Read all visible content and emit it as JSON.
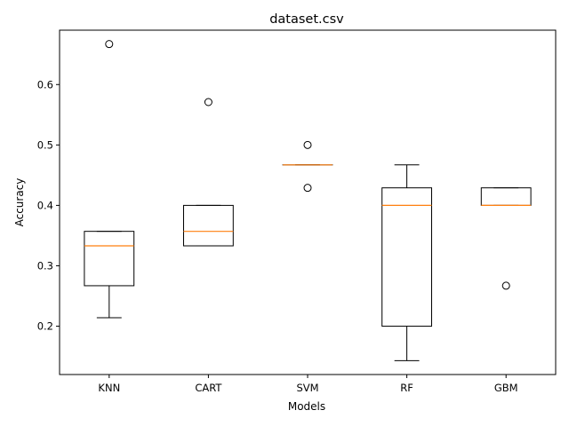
{
  "chart_data": {
    "type": "boxplot",
    "title": "dataset.csv",
    "xlabel": "Models",
    "ylabel": "Accuracy",
    "ylim": [
      0.12,
      0.69
    ],
    "yticks": [
      0.2,
      0.3,
      0.4,
      0.5,
      0.6
    ],
    "ytick_labels": [
      "0.2",
      "0.3",
      "0.4",
      "0.5",
      "0.6"
    ],
    "grid": false,
    "median_color": "#ff7f0e",
    "box_color": "#000000",
    "boxes": [
      {
        "label": "KNN",
        "whisker_low": 0.214,
        "q1": 0.267,
        "median": 0.333,
        "q3": 0.357,
        "whisker_high": 0.357,
        "outliers": [
          0.667
        ]
      },
      {
        "label": "CART",
        "whisker_low": 0.333,
        "q1": 0.333,
        "median": 0.357,
        "q3": 0.4,
        "whisker_high": 0.4,
        "outliers": [
          0.571
        ]
      },
      {
        "label": "SVM",
        "whisker_low": 0.467,
        "q1": 0.467,
        "median": 0.467,
        "q3": 0.467,
        "whisker_high": 0.467,
        "outliers": [
          0.5,
          0.429
        ]
      },
      {
        "label": "RF",
        "whisker_low": 0.143,
        "q1": 0.2,
        "median": 0.4,
        "q3": 0.429,
        "whisker_high": 0.467,
        "outliers": []
      },
      {
        "label": "GBM",
        "whisker_low": 0.4,
        "q1": 0.4,
        "median": 0.4,
        "q3": 0.429,
        "whisker_high": 0.429,
        "outliers": [
          0.267
        ]
      }
    ]
  }
}
